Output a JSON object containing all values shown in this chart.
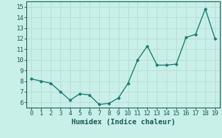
{
  "x": [
    0,
    1,
    2,
    3,
    4,
    5,
    6,
    7,
    8,
    9,
    10,
    11,
    12,
    13,
    14,
    15,
    16,
    17,
    18,
    19
  ],
  "y": [
    8.2,
    8.0,
    7.8,
    7.0,
    6.2,
    6.8,
    6.7,
    5.8,
    5.9,
    6.4,
    7.8,
    10.0,
    11.3,
    9.5,
    9.5,
    9.6,
    12.1,
    12.4,
    14.8,
    12.0
  ],
  "line_color": "#1a7a6e",
  "marker_color": "#1a7a6e",
  "bg_color": "#c8f0e8",
  "grid_color": "#b8ddd5",
  "xlabel": "Humidex (Indice chaleur)",
  "xlim": [
    -0.5,
    19.5
  ],
  "ylim": [
    5.5,
    15.5
  ],
  "yticks": [
    6,
    7,
    8,
    9,
    10,
    11,
    12,
    13,
    14,
    15
  ],
  "xticks": [
    0,
    1,
    2,
    3,
    4,
    5,
    6,
    7,
    8,
    9,
    10,
    11,
    12,
    13,
    14,
    15,
    16,
    17,
    18,
    19
  ],
  "tick_fontsize": 6.5,
  "xlabel_fontsize": 7.5,
  "marker_size": 2.5,
  "line_width": 1.0
}
